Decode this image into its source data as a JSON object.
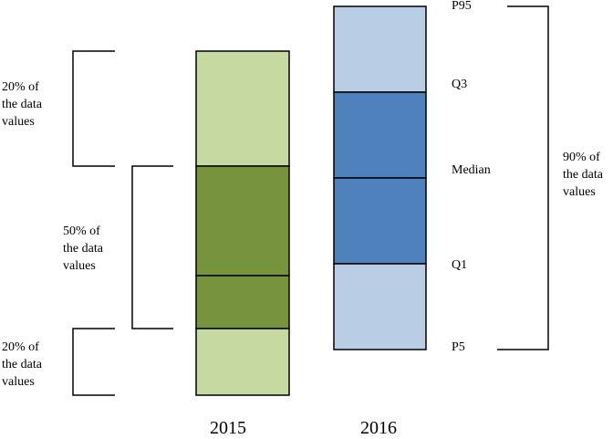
{
  "colors": {
    "light_green": "#c6d9a0",
    "dark_green": "#77933c",
    "light_blue": "#b9cde5",
    "dark_blue": "#4f81bd",
    "outline": "#000000"
  },
  "years": {
    "left": "2015",
    "right": "2016"
  },
  "left_brackets": {
    "top": "20% of\nthe data\nvalues",
    "middle": "50% of\nthe data\nvalues",
    "bottom": "20% of\nthe data\nvalues"
  },
  "right_bracket": "90% of\nthe data\nvalues",
  "percentile_labels": {
    "p95": "P95",
    "q3": "Q3",
    "median": "Median",
    "q1": "Q1",
    "p5": "P5"
  }
}
